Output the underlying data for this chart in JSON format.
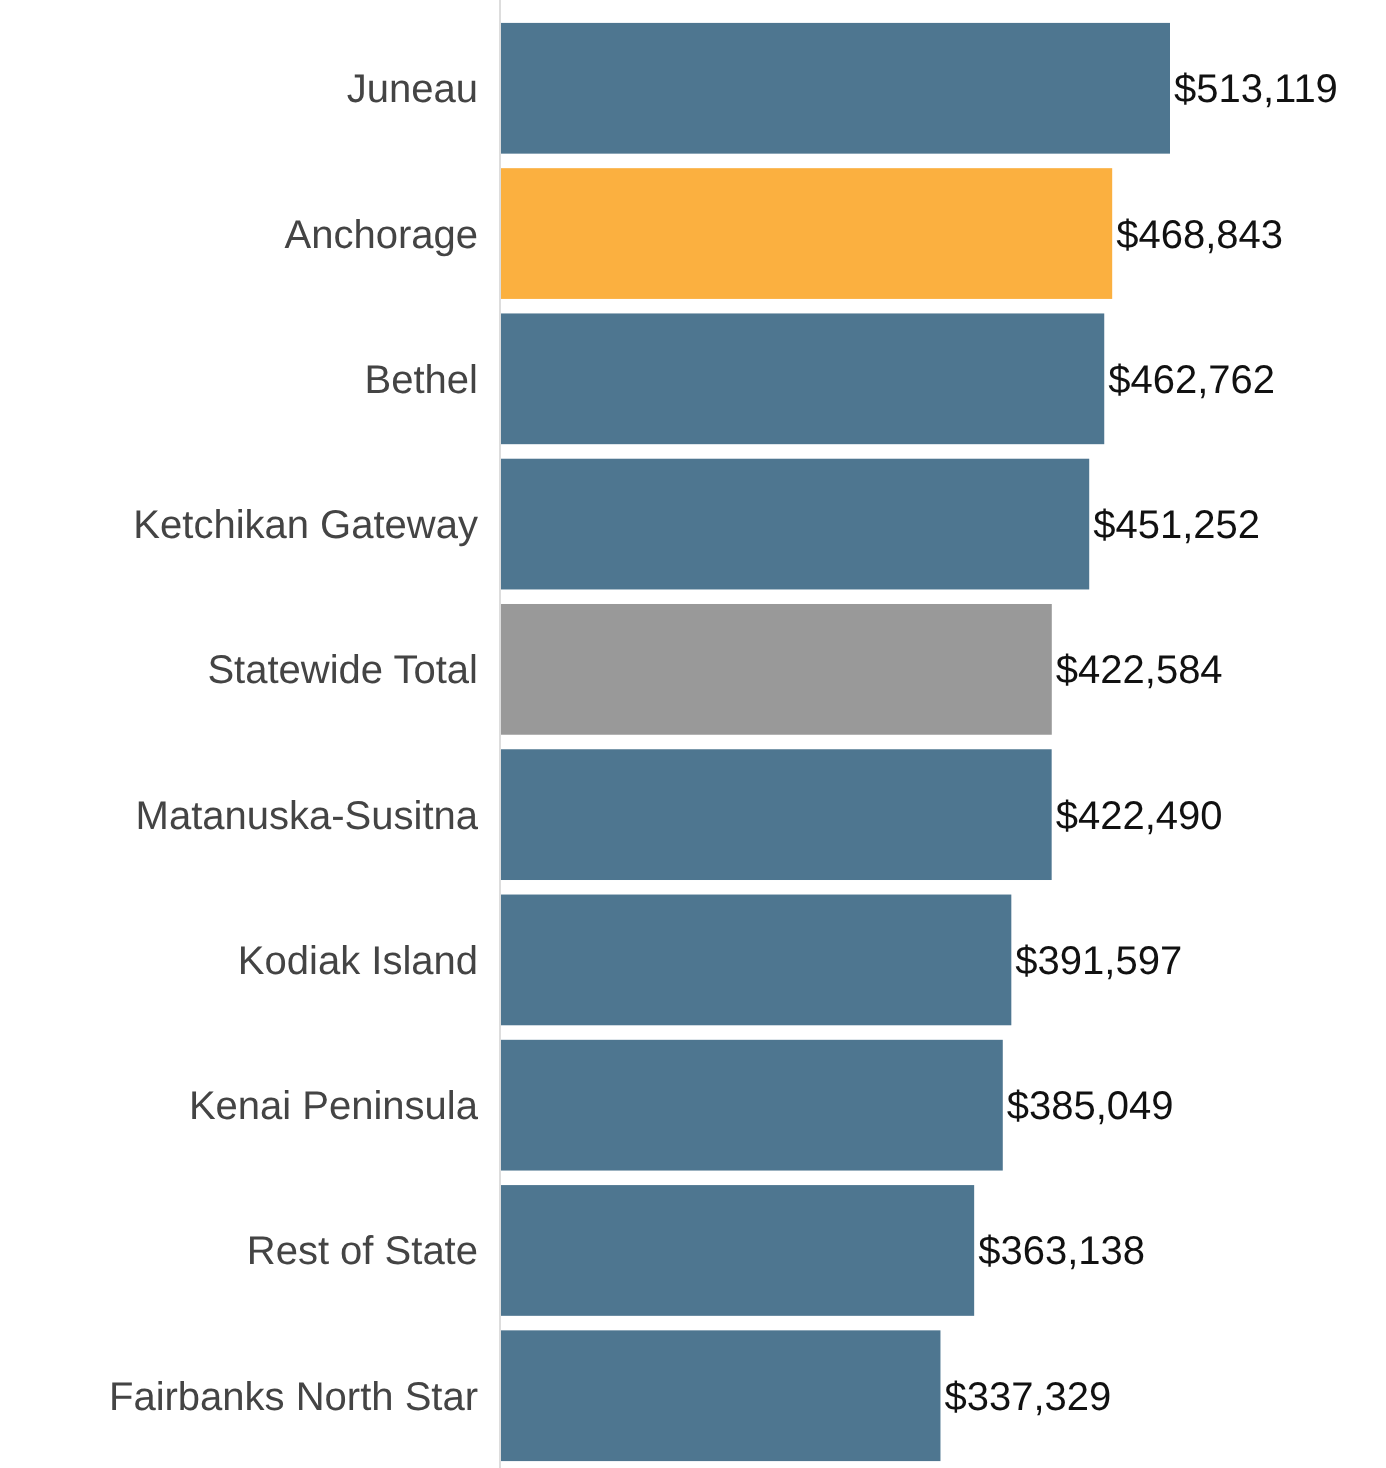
{
  "chart_data": {
    "type": "bar",
    "orientation": "horizontal",
    "categories": [
      "Juneau",
      "Anchorage",
      "Bethel",
      "Ketchikan Gateway",
      "Statewide Total",
      "Matanuska-Susitna",
      "Kodiak Island",
      "Kenai Peninsula",
      "Rest of State",
      "Fairbanks North Star"
    ],
    "values": [
      513119,
      468843,
      462762,
      451252,
      422584,
      422490,
      391597,
      385049,
      363138,
      337329
    ],
    "colors": [
      "#4e7690",
      "#fbb040",
      "#4e7690",
      "#4e7690",
      "#999999",
      "#4e7690",
      "#4e7690",
      "#4e7690",
      "#4e7690",
      "#4e7690"
    ],
    "value_labels": [
      "$513,119",
      "$468,843",
      "$462,762",
      "$451,252",
      "$422,584",
      "$422,490",
      "$391,597",
      "$385,049",
      "$363,138",
      "$337,329"
    ]
  }
}
